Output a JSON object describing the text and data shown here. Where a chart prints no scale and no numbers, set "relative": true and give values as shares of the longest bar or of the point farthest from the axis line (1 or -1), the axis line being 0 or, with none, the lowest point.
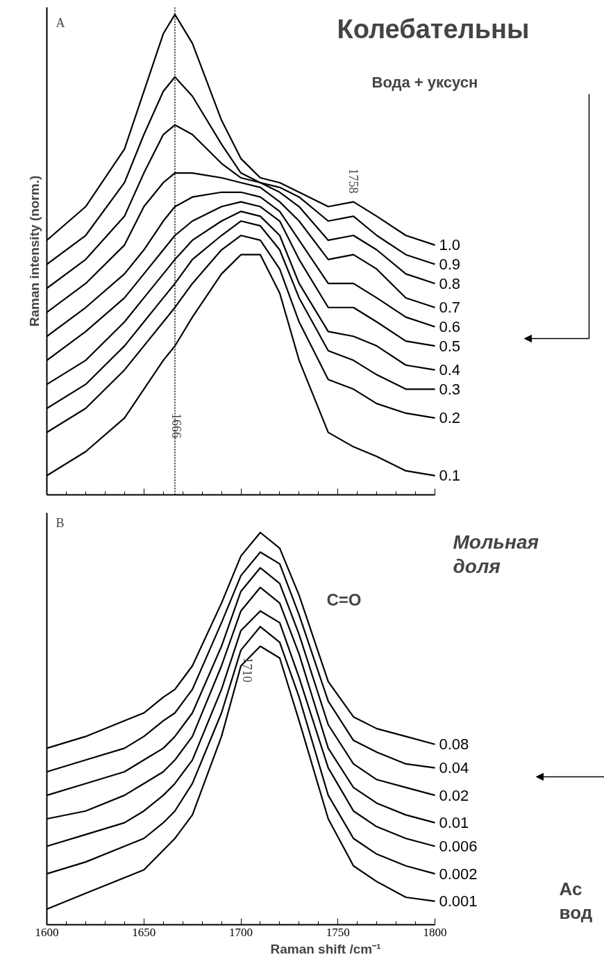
{
  "chart_data": [
    {
      "type": "line",
      "title": "Колебательны",
      "ylabel": "Raman intensity (norm.)",
      "relative": true,
      "xlim": [
        1600,
        1800
      ],
      "xticks": [
        1600,
        1650,
        1700,
        1750,
        1800
      ],
      "tick_labels": false,
      "x": [
        1600,
        1620,
        1640,
        1650,
        1660,
        1666,
        1675,
        1690,
        1700,
        1710,
        1720,
        1730,
        1745,
        1758,
        1770,
        1785,
        1800
      ],
      "series": [
        {
          "name": "1.0",
          "color": "#000000",
          "values": [
            0.53,
            0.6,
            0.72,
            0.84,
            0.96,
            1.0,
            0.94,
            0.78,
            0.7,
            0.66,
            0.65,
            0.63,
            0.6,
            0.61,
            0.58,
            0.54,
            0.52
          ]
        },
        {
          "name": "0.9",
          "color": "#000000",
          "values": [
            0.48,
            0.54,
            0.65,
            0.75,
            0.84,
            0.87,
            0.83,
            0.73,
            0.67,
            0.65,
            0.64,
            0.62,
            0.57,
            0.58,
            0.54,
            0.5,
            0.48
          ]
        },
        {
          "name": "0.8",
          "color": "#000000",
          "values": [
            0.43,
            0.49,
            0.58,
            0.67,
            0.75,
            0.77,
            0.75,
            0.69,
            0.66,
            0.65,
            0.63,
            0.6,
            0.53,
            0.54,
            0.51,
            0.46,
            0.44
          ]
        },
        {
          "name": "0.7",
          "color": "#000000",
          "values": [
            0.38,
            0.44,
            0.52,
            0.6,
            0.65,
            0.67,
            0.67,
            0.66,
            0.65,
            0.64,
            0.61,
            0.57,
            0.49,
            0.5,
            0.47,
            0.41,
            0.39
          ]
        },
        {
          "name": "0.6",
          "color": "#000000",
          "values": [
            0.33,
            0.39,
            0.46,
            0.51,
            0.57,
            0.6,
            0.62,
            0.63,
            0.63,
            0.62,
            0.59,
            0.53,
            0.44,
            0.44,
            0.41,
            0.37,
            0.35
          ]
        },
        {
          "name": "0.5",
          "color": "#000000",
          "values": [
            0.28,
            0.34,
            0.41,
            0.46,
            0.51,
            0.54,
            0.57,
            0.6,
            0.61,
            0.6,
            0.57,
            0.49,
            0.39,
            0.39,
            0.36,
            0.32,
            0.31
          ]
        },
        {
          "name": "0.4",
          "color": "#000000",
          "values": [
            0.23,
            0.28,
            0.36,
            0.41,
            0.46,
            0.49,
            0.53,
            0.57,
            0.59,
            0.58,
            0.54,
            0.44,
            0.34,
            0.33,
            0.31,
            0.27,
            0.26
          ]
        },
        {
          "name": "0.3",
          "color": "#000000",
          "values": [
            0.18,
            0.23,
            0.31,
            0.36,
            0.41,
            0.44,
            0.49,
            0.54,
            0.57,
            0.56,
            0.51,
            0.41,
            0.3,
            0.28,
            0.25,
            0.22,
            0.22
          ]
        },
        {
          "name": "0.2",
          "color": "#000000",
          "values": [
            0.13,
            0.18,
            0.26,
            0.31,
            0.36,
            0.39,
            0.44,
            0.51,
            0.54,
            0.53,
            0.47,
            0.36,
            0.24,
            0.22,
            0.19,
            0.17,
            0.16
          ]
        },
        {
          "name": "0.1",
          "color": "#000000",
          "values": [
            0.04,
            0.09,
            0.16,
            0.22,
            0.28,
            0.31,
            0.37,
            0.46,
            0.5,
            0.5,
            0.42,
            0.28,
            0.13,
            0.1,
            0.08,
            0.05,
            0.04
          ]
        }
      ],
      "ref_lines": [
        {
          "axis": "x",
          "value": 1666,
          "label": "1666",
          "line_style": "dotted",
          "color": "#000000"
        }
      ],
      "annotations": [
        "A",
        {
          "text": "1758",
          "x": 1758,
          "y": 0.61
        },
        "Вода + уксусн"
      ]
    },
    {
      "type": "line",
      "xlabel": "Raman shift /cm⁻¹",
      "relative": true,
      "xlim": [
        1600,
        1800
      ],
      "xticks": [
        1600,
        1650,
        1700,
        1750,
        1800
      ],
      "tick_labels": "x",
      "x": [
        1600,
        1620,
        1640,
        1650,
        1660,
        1666,
        1675,
        1690,
        1700,
        1710,
        1720,
        1730,
        1745,
        1758,
        1770,
        1785,
        1800
      ],
      "series": [
        {
          "name": "0.08",
          "color": "#000000",
          "values": [
            0.45,
            0.48,
            0.52,
            0.54,
            0.58,
            0.6,
            0.66,
            0.82,
            0.94,
            1.0,
            0.96,
            0.84,
            0.62,
            0.53,
            0.5,
            0.48,
            0.46
          ]
        },
        {
          "name": "0.04",
          "color": "#000000",
          "values": [
            0.39,
            0.42,
            0.45,
            0.48,
            0.52,
            0.54,
            0.6,
            0.77,
            0.89,
            0.95,
            0.92,
            0.79,
            0.57,
            0.47,
            0.44,
            0.41,
            0.4
          ]
        },
        {
          "name": "0.02",
          "color": "#000000",
          "values": [
            0.33,
            0.36,
            0.39,
            0.42,
            0.45,
            0.48,
            0.54,
            0.71,
            0.85,
            0.91,
            0.87,
            0.74,
            0.51,
            0.41,
            0.37,
            0.35,
            0.33
          ]
        },
        {
          "name": "0.01",
          "color": "#000000",
          "values": [
            0.27,
            0.29,
            0.33,
            0.36,
            0.39,
            0.42,
            0.48,
            0.66,
            0.8,
            0.86,
            0.82,
            0.69,
            0.45,
            0.35,
            0.31,
            0.28,
            0.26
          ]
        },
        {
          "name": "0.006",
          "color": "#000000",
          "values": [
            0.2,
            0.23,
            0.26,
            0.29,
            0.33,
            0.36,
            0.42,
            0.6,
            0.75,
            0.8,
            0.77,
            0.63,
            0.4,
            0.29,
            0.25,
            0.22,
            0.2
          ]
        },
        {
          "name": "0.002",
          "color": "#000000",
          "values": [
            0.13,
            0.16,
            0.2,
            0.22,
            0.26,
            0.29,
            0.36,
            0.54,
            0.7,
            0.76,
            0.72,
            0.58,
            0.33,
            0.22,
            0.18,
            0.15,
            0.13
          ]
        },
        {
          "name": "0.001",
          "color": "#000000",
          "values": [
            0.04,
            0.08,
            0.12,
            0.14,
            0.19,
            0.22,
            0.28,
            0.48,
            0.66,
            0.71,
            0.68,
            0.52,
            0.27,
            0.15,
            0.11,
            0.07,
            0.06
          ]
        }
      ],
      "annotations": [
        "B",
        "1710",
        "Мольная доля",
        "C=O",
        "Ас",
        "вод"
      ]
    }
  ]
}
